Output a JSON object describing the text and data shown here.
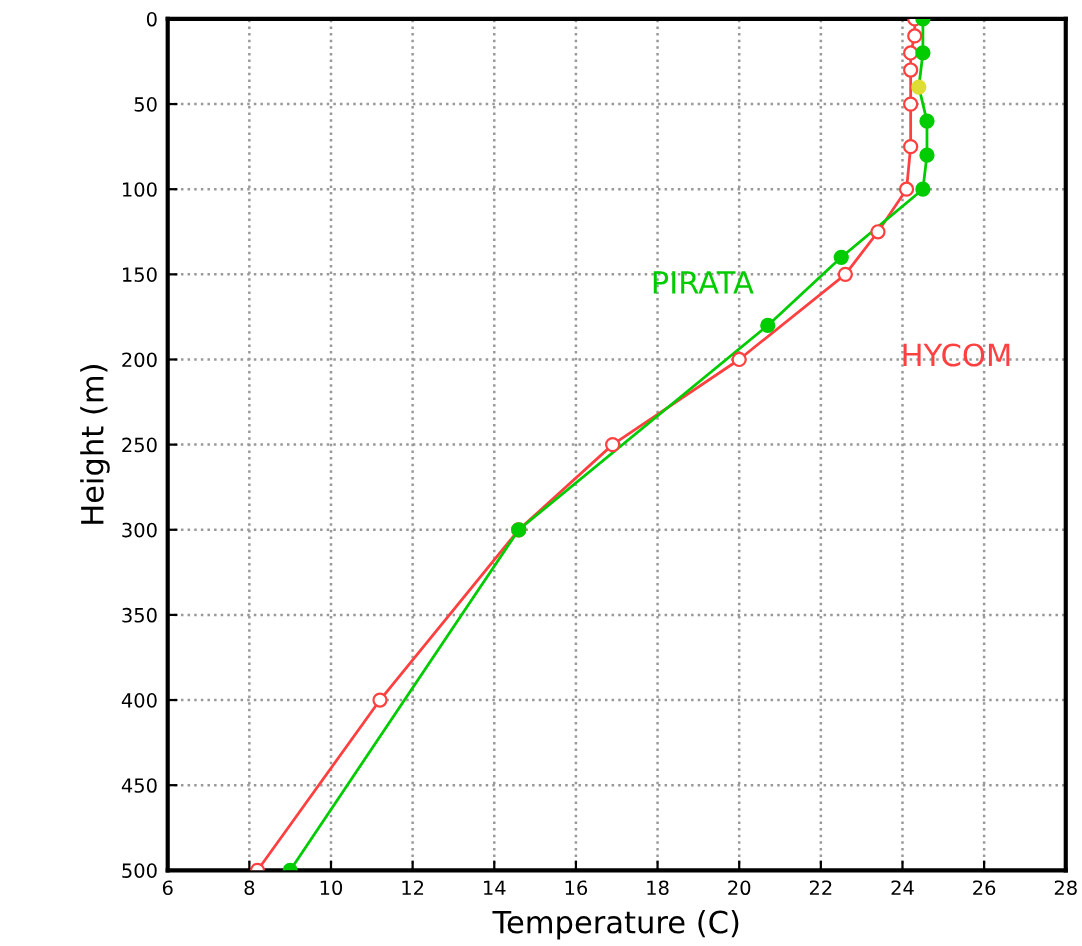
{
  "chart_data": {
    "type": "line",
    "xlabel": "Temperature (C)",
    "ylabel": "Height (m)",
    "xlim": [
      6,
      28
    ],
    "xticks": [
      6,
      8,
      10,
      12,
      14,
      16,
      18,
      20,
      22,
      24,
      26,
      28
    ],
    "ylim": [
      500,
      0
    ],
    "yticks": [
      0,
      50,
      100,
      150,
      200,
      250,
      300,
      350,
      400,
      450,
      500
    ],
    "grid": true,
    "legend": false,
    "line_style": "solid",
    "series": [
      {
        "name": "HYCOM",
        "color": "#ff4040",
        "marker": "circle",
        "x": [
          24.3,
          24.3,
          24.2,
          24.2,
          24.2,
          24.2,
          24.1,
          23.4,
          22.6,
          20.0,
          16.9,
          14.6,
          11.2,
          8.2
        ],
        "values": [
          0,
          10,
          20,
          30,
          50,
          75,
          100,
          125,
          150,
          200,
          250,
          300,
          400,
          500
        ]
      },
      {
        "name": "PIRATA",
        "color": "#00cc00",
        "marker": "circle",
        "colors": [
          "#00cc00",
          "#00cc00",
          "#dddd33",
          "#00cc00",
          "#00cc00",
          "#00cc00",
          "#00cc00",
          "#00cc00",
          "#00cc00",
          "#00cc00"
        ],
        "x": [
          24.5,
          24.5,
          24.4,
          24.6,
          24.6,
          24.5,
          22.5,
          20.7,
          14.6,
          9.0
        ],
        "values": [
          0,
          20,
          40,
          60,
          80,
          100,
          140,
          180,
          300,
          500
        ]
      }
    ]
  }
}
